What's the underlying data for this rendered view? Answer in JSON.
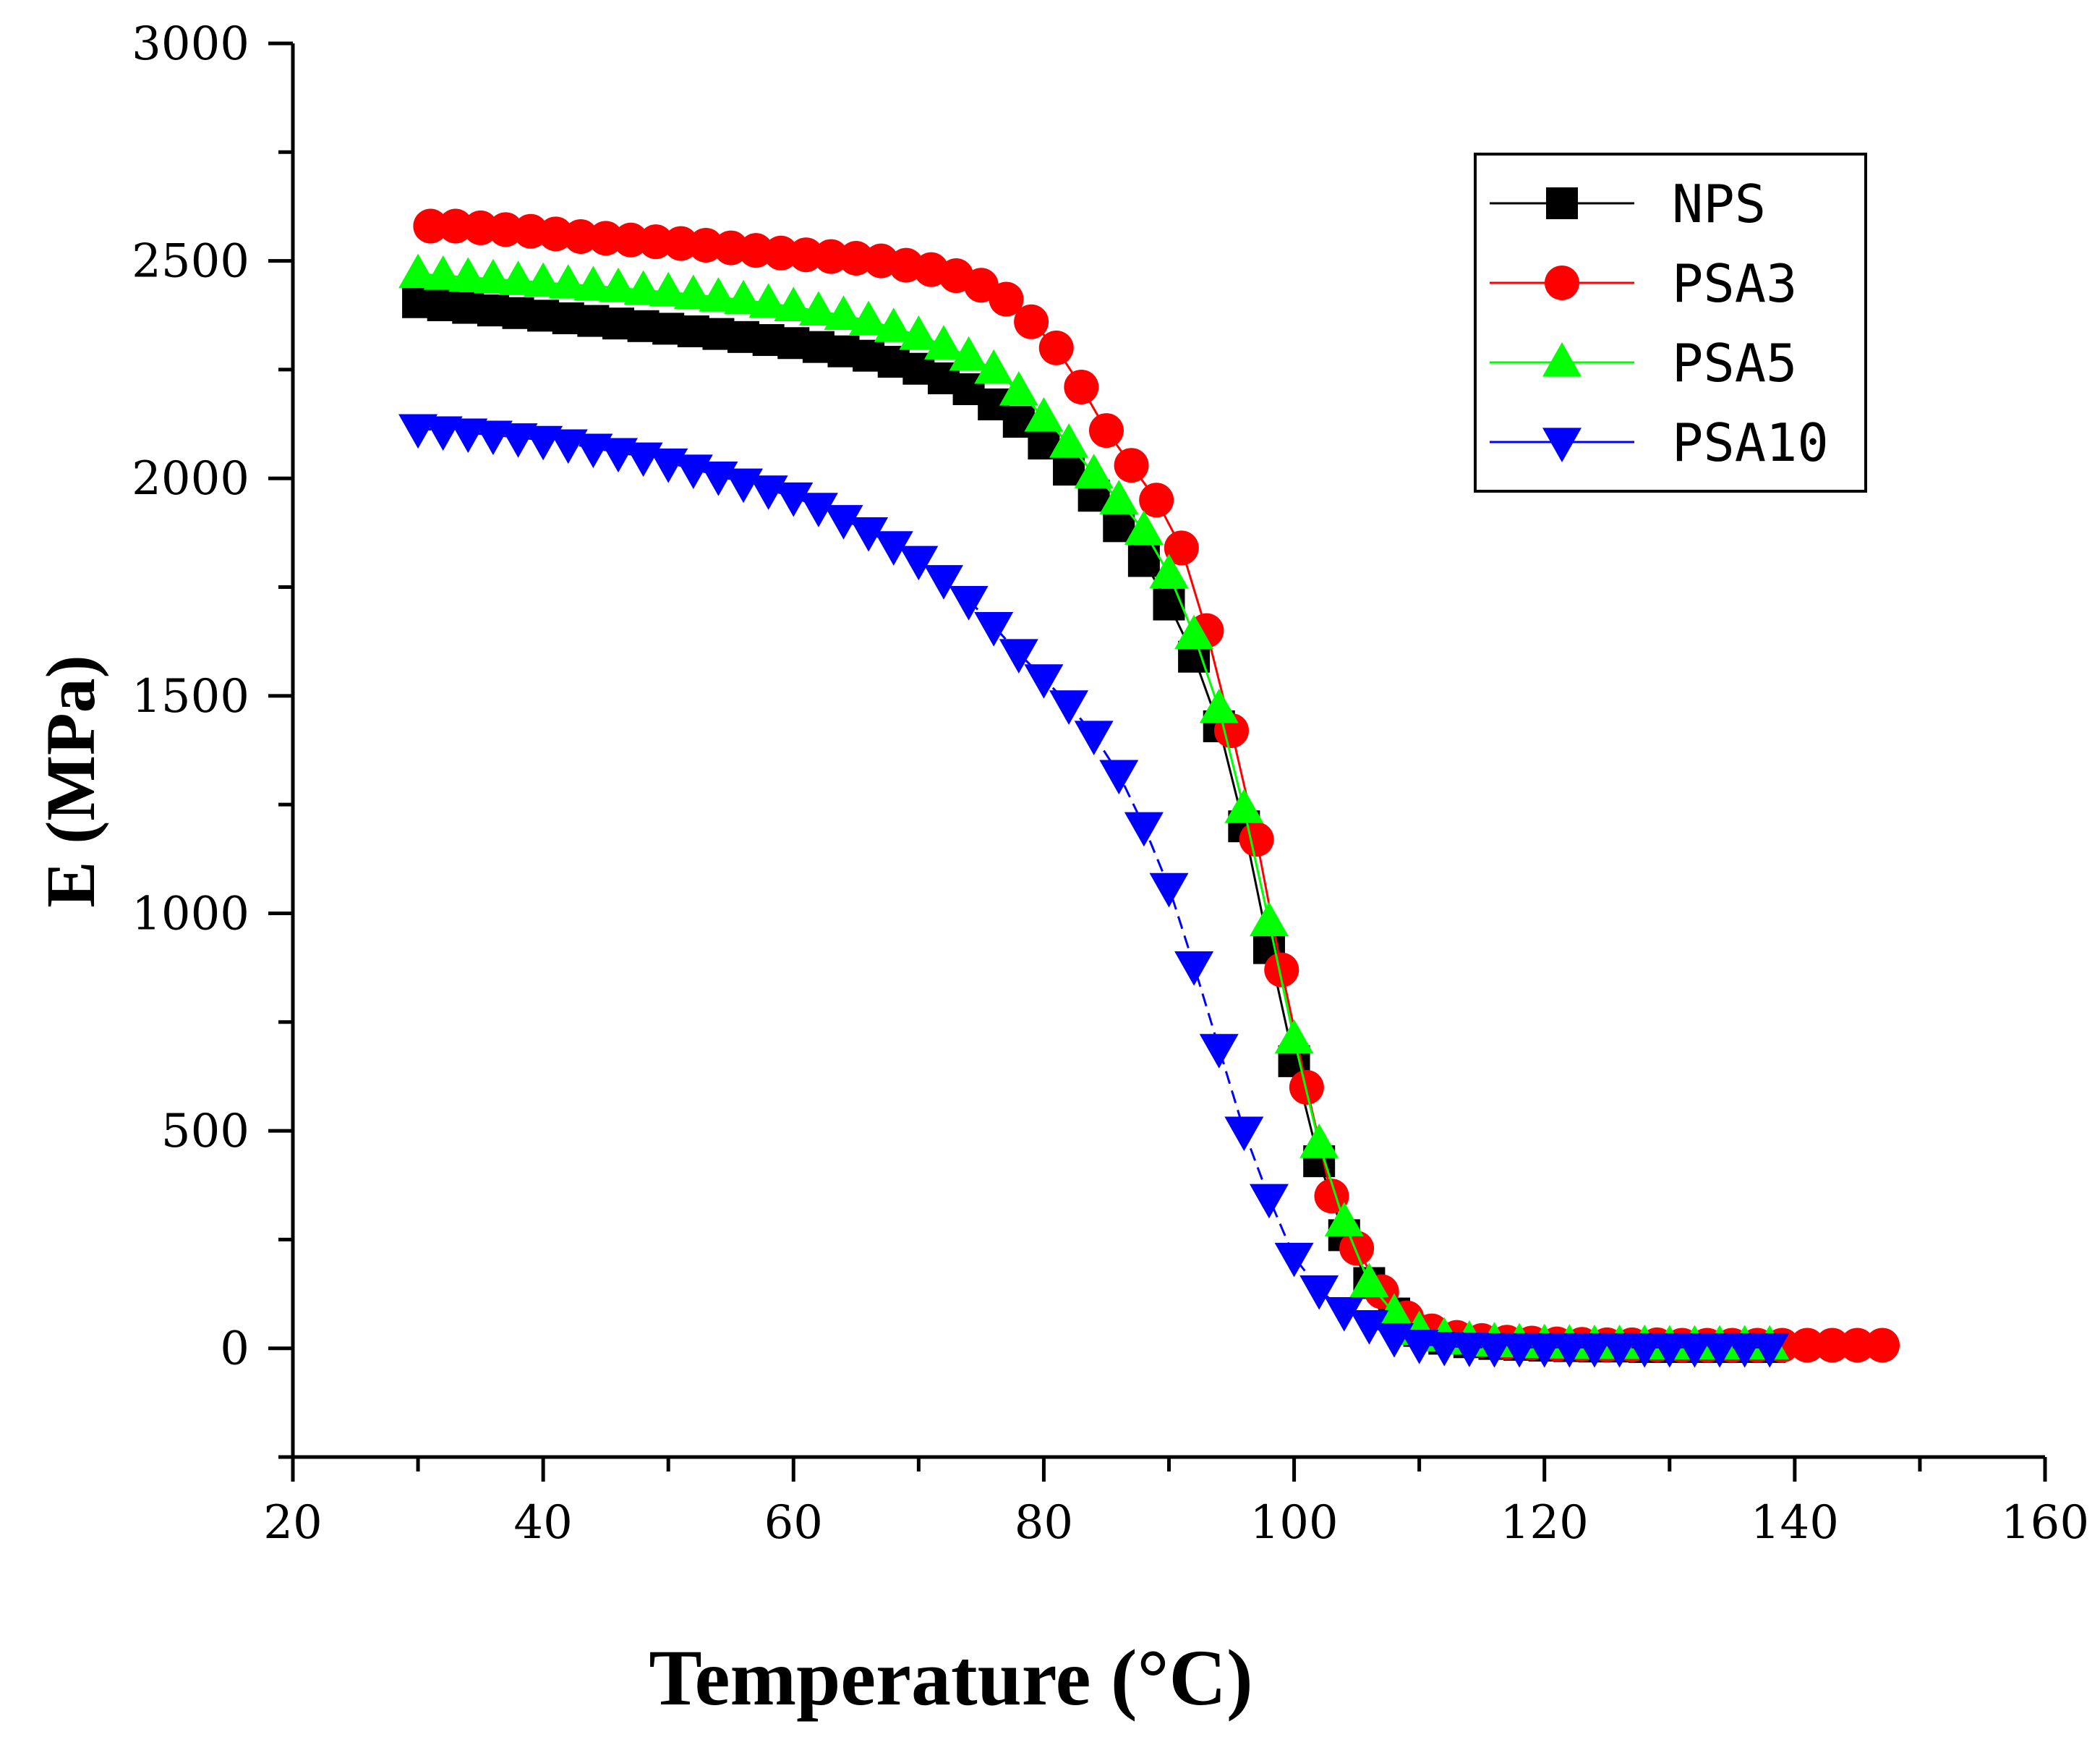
{
  "chart_data": {
    "type": "line",
    "xlabel": "Temperature (°C)",
    "ylabel": "E (MPa)",
    "xlim": [
      20,
      160
    ],
    "ylim": [
      -250,
      3000
    ],
    "xticks": [
      20,
      40,
      60,
      80,
      100,
      120,
      140,
      160
    ],
    "yticks": [
      0,
      500,
      1000,
      1500,
      2000,
      2500,
      3000
    ],
    "xtick_labels": [
      "20",
      "40",
      "60",
      "80",
      "100",
      "120",
      "140",
      "160"
    ],
    "ytick_labels": [
      "0",
      "500",
      "1000",
      "1500",
      "2000",
      "2500",
      "3000"
    ],
    "legend_position": "top-right",
    "grid": false,
    "series": [
      {
        "name": "NPS",
        "color": "#000000",
        "marker": "square",
        "x": [
          30,
          32,
          34,
          36,
          38,
          40,
          42,
          44,
          46,
          48,
          50,
          52,
          54,
          56,
          58,
          60,
          62,
          64,
          66,
          68,
          70,
          72,
          74,
          76,
          78,
          80,
          82,
          84,
          86,
          88,
          90,
          92,
          94,
          96,
          98,
          100,
          102,
          104,
          106,
          108,
          110,
          112,
          114,
          116,
          118,
          120,
          122,
          124,
          126,
          128,
          130,
          132,
          134,
          136,
          138
        ],
        "y": [
          2405,
          2398,
          2392,
          2386,
          2380,
          2374,
          2368,
          2362,
          2356,
          2350,
          2344,
          2338,
          2332,
          2325,
          2318,
          2311,
          2302,
          2292,
          2282,
          2268,
          2252,
          2230,
          2205,
          2170,
          2130,
          2080,
          2020,
          1960,
          1890,
          1810,
          1710,
          1590,
          1430,
          1200,
          920,
          660,
          430,
          260,
          150,
          80,
          40,
          22,
          14,
          10,
          8,
          6,
          5,
          4,
          4,
          3,
          3,
          3,
          3,
          3,
          3
        ]
      },
      {
        "name": "PSA3",
        "color": "#ff0000",
        "marker": "circle",
        "x": [
          31,
          33,
          35,
          37,
          39,
          41,
          43,
          45,
          47,
          49,
          51,
          53,
          55,
          57,
          59,
          61,
          63,
          65,
          67,
          69,
          71,
          73,
          75,
          77,
          79,
          81,
          83,
          85,
          87,
          89,
          91,
          93,
          95,
          97,
          99,
          101,
          103,
          105,
          107,
          109,
          111,
          113,
          115,
          117,
          119,
          121,
          123,
          125,
          127,
          129,
          131,
          133,
          135,
          137,
          139,
          141,
          143,
          145,
          147
        ],
        "y": [
          2580,
          2580,
          2576,
          2572,
          2568,
          2562,
          2556,
          2552,
          2548,
          2544,
          2540,
          2536,
          2530,
          2524,
          2518,
          2514,
          2510,
          2506,
          2500,
          2490,
          2480,
          2466,
          2444,
          2412,
          2360,
          2300,
          2210,
          2110,
          2030,
          1950,
          1840,
          1650,
          1420,
          1170,
          870,
          600,
          350,
          230,
          130,
          70,
          40,
          25,
          18,
          14,
          12,
          10,
          9,
          8,
          8,
          8,
          7,
          7,
          7,
          7,
          7,
          7,
          7,
          7,
          7
        ]
      },
      {
        "name": "PSA5",
        "color": "#00ff00",
        "marker": "triangle-up",
        "x": [
          30,
          32,
          34,
          36,
          38,
          40,
          42,
          44,
          46,
          48,
          50,
          52,
          54,
          56,
          58,
          60,
          62,
          64,
          66,
          68,
          70,
          72,
          74,
          76,
          78,
          80,
          82,
          84,
          86,
          88,
          90,
          92,
          94,
          96,
          98,
          100,
          102,
          104,
          106,
          108,
          110,
          112,
          114,
          116,
          118,
          120,
          122,
          124,
          126,
          128,
          130,
          132,
          134,
          136,
          138
        ],
        "y": [
          2470,
          2466,
          2462,
          2458,
          2454,
          2450,
          2446,
          2442,
          2438,
          2432,
          2428,
          2422,
          2416,
          2410,
          2402,
          2394,
          2384,
          2374,
          2362,
          2346,
          2328,
          2306,
          2280,
          2250,
          2200,
          2140,
          2080,
          2010,
          1950,
          1880,
          1780,
          1640,
          1470,
          1240,
          980,
          710,
          470,
          290,
          150,
          80,
          40,
          25,
          18,
          14,
          12,
          10,
          9,
          8,
          8,
          8,
          7,
          7,
          7,
          7,
          7
        ]
      },
      {
        "name": "PSA10",
        "color": "#0000ff",
        "marker": "triangle-down",
        "x": [
          30,
          32,
          34,
          36,
          38,
          40,
          42,
          44,
          46,
          48,
          50,
          52,
          54,
          56,
          58,
          60,
          62,
          64,
          66,
          68,
          70,
          72,
          74,
          76,
          78,
          80,
          82,
          84,
          86,
          88,
          90,
          92,
          94,
          96,
          98,
          100,
          102,
          104,
          106,
          108,
          110,
          112,
          114,
          116,
          118,
          120,
          122,
          124,
          126,
          128,
          130,
          132,
          134,
          136,
          138
        ],
        "y": [
          2115,
          2110,
          2105,
          2100,
          2094,
          2088,
          2080,
          2070,
          2060,
          2050,
          2036,
          2022,
          2006,
          1990,
          1974,
          1958,
          1934,
          1906,
          1878,
          1846,
          1812,
          1768,
          1720,
          1660,
          1598,
          1540,
          1480,
          1410,
          1320,
          1200,
          1060,
          880,
          690,
          500,
          345,
          210,
          135,
          85,
          55,
          25,
          10,
          5,
          3,
          2,
          2,
          2,
          2,
          2,
          2,
          2,
          2,
          2,
          2,
          2,
          2
        ]
      }
    ]
  }
}
